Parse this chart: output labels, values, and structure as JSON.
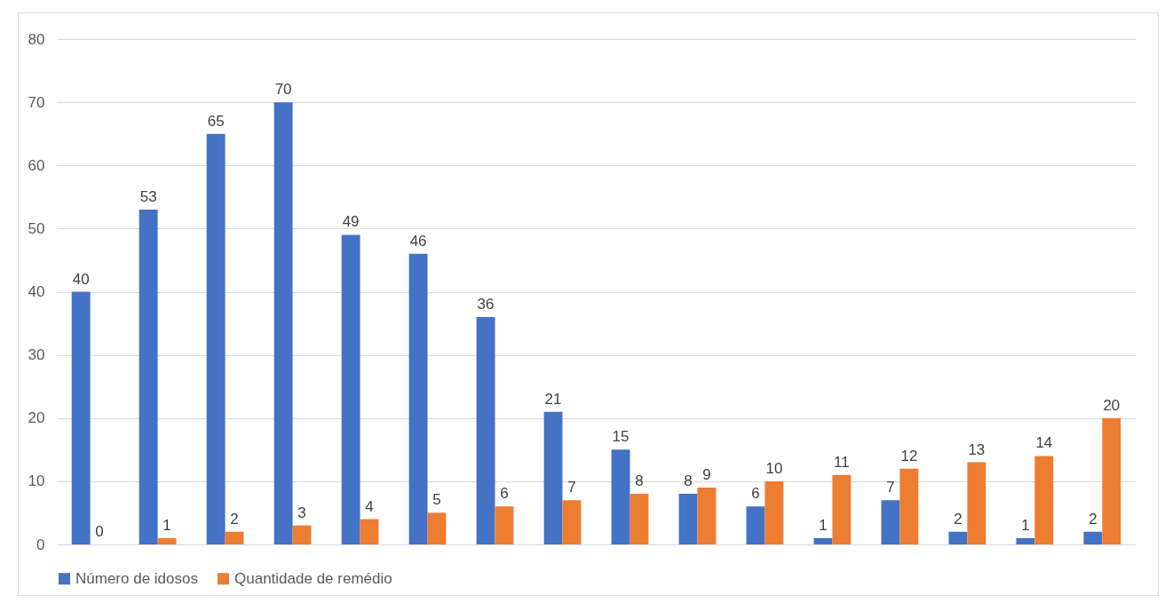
{
  "chart_data": {
    "type": "bar",
    "categories": [
      null,
      null,
      null,
      null,
      null,
      null,
      null,
      null,
      null,
      null,
      null,
      null,
      null,
      null,
      null,
      null
    ],
    "series": [
      {
        "name": "Número de idosos",
        "color": "#4472c4",
        "values": [
          40,
          53,
          65,
          70,
          49,
          46,
          36,
          21,
          15,
          8,
          6,
          1,
          7,
          2,
          1,
          2
        ]
      },
      {
        "name": "Quantidade de remédio",
        "color": "#ed7d31",
        "values": [
          0,
          1,
          2,
          3,
          4,
          5,
          6,
          7,
          8,
          9,
          10,
          11,
          12,
          13,
          14,
          20
        ]
      }
    ],
    "ylim": [
      0,
      80
    ],
    "yticks": [
      0,
      10,
      20,
      30,
      40,
      50,
      60,
      70,
      80
    ],
    "grid": "y",
    "legend": "bottom",
    "data_labels": true,
    "tick_labels": "y"
  }
}
